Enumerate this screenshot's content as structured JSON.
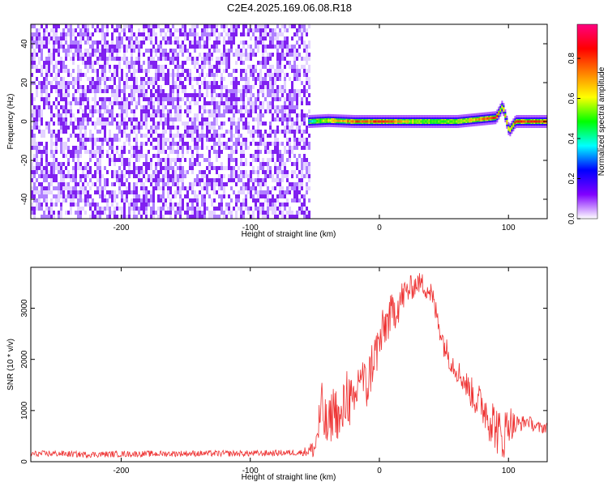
{
  "title": "C2E4.2025.169.06.08.R18",
  "chart_data": [
    {
      "type": "heatmap",
      "xlabel": "Height of straight line (km)",
      "ylabel": "Frequency (Hz)",
      "xlim": [
        -270,
        130
      ],
      "ylim": [
        -50,
        50
      ],
      "x_ticks": [
        -200,
        -100,
        0,
        100
      ],
      "x_tick_labels": [
        "-200",
        "-100",
        "0",
        "100"
      ],
      "y_ticks": [
        -40,
        -20,
        0,
        20,
        40
      ],
      "y_tick_labels": [
        "-40",
        "-20",
        "0",
        "20",
        "40"
      ],
      "noise_region_x": [
        -270,
        -55
      ],
      "signal_start_x": -55,
      "colorbar": {
        "label": "Normalized spectral amplitude",
        "range": [
          0,
          0.97
        ],
        "ticks": [
          0,
          0.2,
          0.4,
          0.6,
          0.8
        ],
        "tick_labels": [
          "0.0",
          "0.2",
          "0.4",
          "0.6",
          "0.8"
        ],
        "colors": [
          "#ffffff",
          "#8000ff",
          "#0000ff",
          "#00ffff",
          "#00ff00",
          "#ffff00",
          "#ff8000",
          "#ff0000",
          "#ff0080"
        ]
      },
      "line_points": [
        {
          "x": -55,
          "y": 0,
          "amp": 0.35
        },
        {
          "x": -40,
          "y": 0.5,
          "amp": 0.65
        },
        {
          "x": -20,
          "y": 0,
          "amp": 0.8
        },
        {
          "x": -10,
          "y": 0,
          "amp": 0.75
        },
        {
          "x": 0,
          "y": 0,
          "amp": 0.9
        },
        {
          "x": 30,
          "y": 0,
          "amp": 0.55
        },
        {
          "x": 60,
          "y": 0,
          "amp": 0.55
        },
        {
          "x": 90,
          "y": 2,
          "amp": 0.85
        },
        {
          "x": 95,
          "y": 8,
          "amp": 0.7
        },
        {
          "x": 100,
          "y": -5,
          "amp": 0.6
        },
        {
          "x": 105,
          "y": 0,
          "amp": 0.85
        },
        {
          "x": 130,
          "y": 0,
          "amp": 0.85
        }
      ]
    },
    {
      "type": "line",
      "xlabel": "Height of straight line (km)",
      "ylabel": "SNR (10 * v/v)",
      "xlim": [
        -270,
        130
      ],
      "ylim": [
        0,
        3800
      ],
      "x_ticks": [
        -200,
        -100,
        0,
        100
      ],
      "x_tick_labels": [
        "-200",
        "-100",
        "0",
        "100"
      ],
      "y_ticks": [
        0,
        1000,
        2000,
        3000
      ],
      "y_tick_labels": [
        "0",
        "1000",
        "2000",
        "3000"
      ],
      "series": [
        {
          "color": "#ee3333",
          "x": [
            -270,
            -250,
            -230,
            -200,
            -150,
            -100,
            -60,
            -50,
            -45,
            -40,
            -35,
            -30,
            -25,
            -20,
            -15,
            -10,
            -5,
            0,
            5,
            10,
            15,
            20,
            25,
            30,
            35,
            40,
            45,
            50,
            55,
            60,
            65,
            70,
            75,
            80,
            85,
            90,
            95,
            100,
            105,
            110,
            115,
            120,
            125,
            130
          ],
          "y": [
            150,
            160,
            140,
            150,
            160,
            160,
            180,
            250,
            1000,
            600,
            1100,
            700,
            1400,
            900,
            1800,
            1400,
            2000,
            2300,
            2700,
            2900,
            3100,
            3300,
            3400,
            3500,
            3450,
            3300,
            2800,
            2300,
            2000,
            1800,
            1600,
            1400,
            1200,
            1100,
            900,
            700,
            400,
            800,
            700,
            750,
            800,
            700,
            650,
            700
          ],
          "noise": [
            60,
            60,
            60,
            60,
            60,
            60,
            60,
            200,
            600,
            500,
            500,
            500,
            600,
            600,
            500,
            500,
            500,
            500,
            450,
            400,
            400,
            300,
            250,
            200,
            250,
            250,
            250,
            250,
            250,
            250,
            250,
            300,
            350,
            400,
            500,
            500,
            500,
            400,
            250,
            150,
            120,
            120,
            120,
            120
          ]
        }
      ]
    }
  ]
}
